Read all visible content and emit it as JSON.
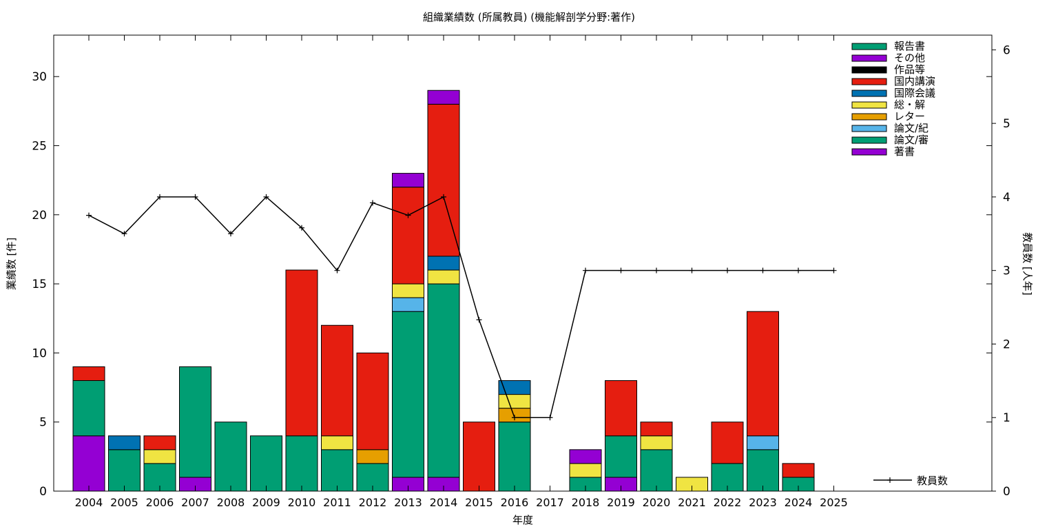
{
  "chart_data": {
    "type": "bar",
    "title": "組織業績数 (所属教員) (機能解剖学分野:著作)",
    "xlabel": "年度",
    "ylabel": "業績数 [件]",
    "y2label": "教員数 [人年]",
    "ylim": [
      0,
      33
    ],
    "y2lim": [
      0,
      6.2
    ],
    "yticks": [
      0,
      5,
      10,
      15,
      20,
      25,
      30
    ],
    "y2ticks": [
      0,
      1,
      2,
      3,
      4,
      5,
      6
    ],
    "stacked": true,
    "grid": false,
    "legend_position": "top-right",
    "categories": [
      "2004",
      "2005",
      "2006",
      "2007",
      "2008",
      "2009",
      "2010",
      "2011",
      "2012",
      "2013",
      "2014",
      "2015",
      "2016",
      "2017",
      "2018",
      "2019",
      "2020",
      "2021",
      "2022",
      "2023",
      "2024",
      "2025"
    ],
    "series": [
      {
        "name": "著書",
        "color": "#9400d3",
        "values": [
          4,
          0,
          0,
          1,
          0,
          0,
          0,
          0,
          0,
          1,
          1,
          0,
          0,
          0,
          0,
          1,
          0,
          0,
          0,
          0,
          0,
          0
        ]
      },
      {
        "name": "論文/審",
        "color": "#009e73",
        "values": [
          4,
          3,
          2,
          8,
          5,
          4,
          4,
          3,
          2,
          12,
          14,
          0,
          5,
          0,
          1,
          3,
          3,
          0,
          2,
          3,
          1,
          0
        ]
      },
      {
        "name": "論文/紀",
        "color": "#56b4e9",
        "values": [
          0,
          0,
          0,
          0,
          0,
          0,
          0,
          0,
          0,
          1,
          0,
          0,
          0,
          0,
          0,
          0,
          0,
          0,
          0,
          1,
          0,
          0
        ]
      },
      {
        "name": "レター",
        "color": "#e69f00",
        "values": [
          0,
          0,
          0,
          0,
          0,
          0,
          0,
          0,
          1,
          0,
          0,
          0,
          1,
          0,
          0,
          0,
          0,
          0,
          0,
          0,
          0,
          0
        ]
      },
      {
        "name": "総・解",
        "color": "#f0e442",
        "values": [
          0,
          0,
          1,
          0,
          0,
          0,
          0,
          1,
          0,
          1,
          1,
          0,
          1,
          0,
          1,
          0,
          1,
          1,
          0,
          0,
          0,
          0
        ]
      },
      {
        "name": "国際会議",
        "color": "#0072b2",
        "values": [
          0,
          1,
          0,
          0,
          0,
          0,
          0,
          0,
          0,
          0,
          1,
          0,
          1,
          0,
          0,
          0,
          0,
          0,
          0,
          0,
          0,
          0
        ]
      },
      {
        "name": "国内講演",
        "color": "#e51e10",
        "values": [
          1,
          0,
          1,
          0,
          0,
          0,
          12,
          8,
          7,
          7,
          11,
          5,
          0,
          0,
          0,
          4,
          1,
          0,
          3,
          9,
          1,
          0
        ]
      },
      {
        "name": "作品等",
        "color": "#000000",
        "values": [
          0,
          0,
          0,
          0,
          0,
          0,
          0,
          0,
          0,
          0,
          0,
          0,
          0,
          0,
          0,
          0,
          0,
          0,
          0,
          0,
          0,
          0
        ]
      },
      {
        "name": "その他",
        "color": "#9400d3",
        "values": [
          0,
          0,
          0,
          0,
          0,
          0,
          0,
          0,
          0,
          1,
          1,
          0,
          0,
          0,
          1,
          0,
          0,
          0,
          0,
          0,
          0,
          0
        ]
      },
      {
        "name": "報告書",
        "color": "#009e73",
        "values": [
          0,
          0,
          0,
          0,
          0,
          0,
          0,
          0,
          0,
          0,
          0,
          0,
          0,
          0,
          0,
          0,
          0,
          0,
          0,
          0,
          0,
          0
        ]
      }
    ],
    "line_series": {
      "name": "教員数",
      "axis": "right",
      "color": "#000000",
      "values": [
        3.75,
        3.5,
        4,
        4,
        3.5,
        4,
        3.58,
        3,
        3.92,
        3.75,
        4,
        2.33,
        1,
        1,
        3,
        3,
        3,
        3,
        3,
        3,
        3,
        3
      ]
    }
  }
}
